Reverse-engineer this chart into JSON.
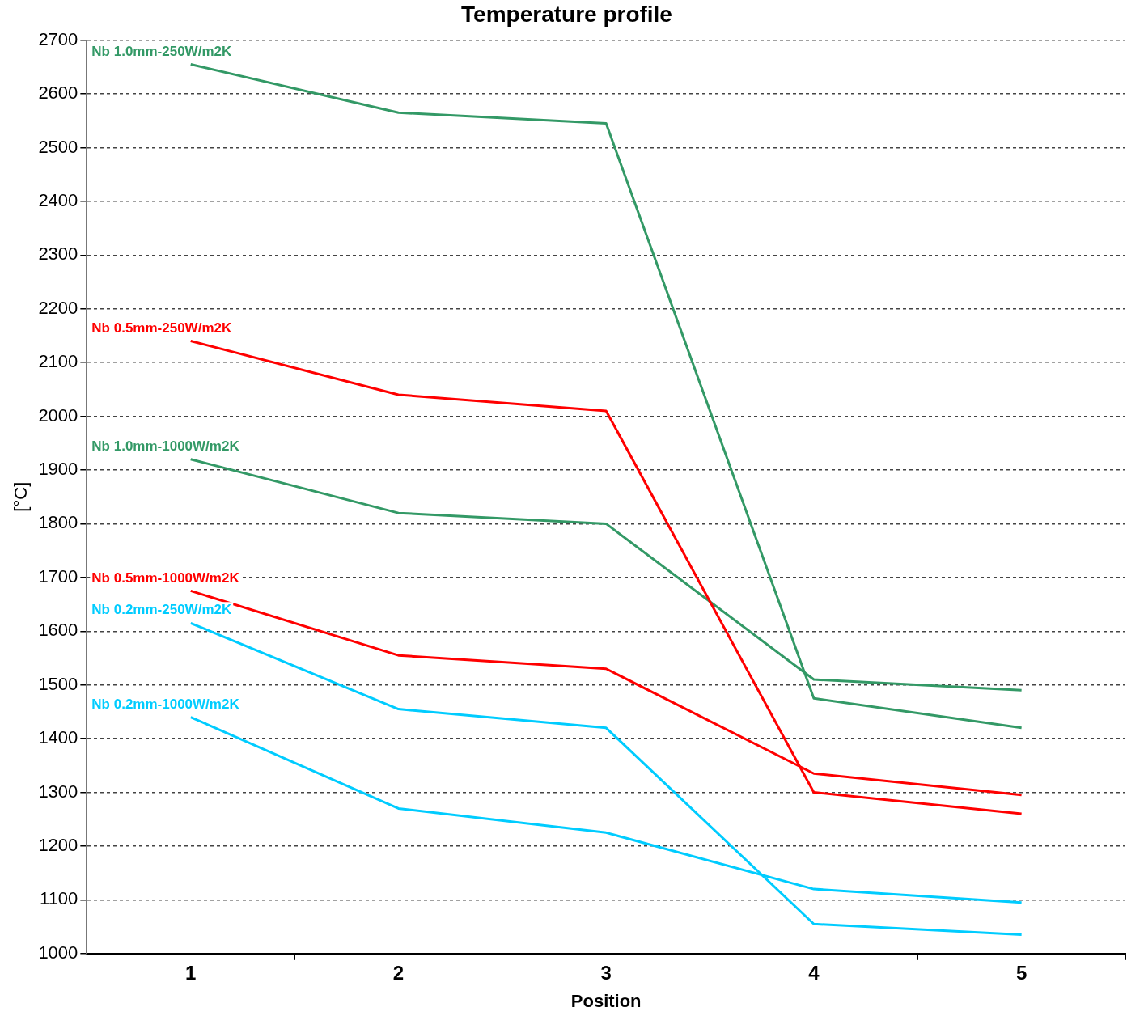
{
  "chart_data": {
    "type": "line",
    "title": "Temperature profile",
    "xlabel": "Position",
    "ylabel": "[°C]",
    "categories": [
      "1",
      "2",
      "3",
      "4",
      "5"
    ],
    "series": [
      {
        "name": "Nb 1.0mm-250W/m2K",
        "color": "#339966",
        "values": [
          2655,
          2565,
          2545,
          1475,
          1420
        ]
      },
      {
        "name": "Nb 0.5mm-250W/m2K",
        "color": "#ff0000",
        "values": [
          2140,
          2040,
          2010,
          1300,
          1260
        ]
      },
      {
        "name": "Nb 1.0mm-1000W/m2K",
        "color": "#339966",
        "values": [
          1920,
          1820,
          1800,
          1510,
          1490
        ]
      },
      {
        "name": "Nb 0.5mm-1000W/m2K",
        "color": "#ff0000",
        "values": [
          1675,
          1555,
          1530,
          1335,
          1295
        ]
      },
      {
        "name": "Nb 0.2mm-250W/m2K",
        "color": "#00ccff",
        "values": [
          1615,
          1455,
          1420,
          1055,
          1035
        ]
      },
      {
        "name": "Nb 0.2mm-1000W/m2K",
        "color": "#00ccff",
        "values": [
          1440,
          1270,
          1225,
          1120,
          1095
        ]
      }
    ],
    "ylim": [
      1000,
      2700
    ],
    "yticks": [
      1000,
      1100,
      1200,
      1300,
      1400,
      1500,
      1600,
      1700,
      1800,
      1900,
      2000,
      2100,
      2200,
      2300,
      2400,
      2500,
      2600,
      2700
    ],
    "grid": "y",
    "legend": false,
    "marker": "none",
    "line_style": "solid"
  }
}
